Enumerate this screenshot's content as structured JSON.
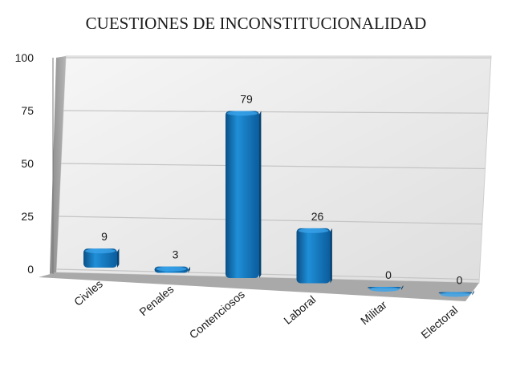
{
  "chart_data": {
    "type": "bar",
    "title": "CUESTIONES DE INCONSTITUCIONALIDAD",
    "categories": [
      "Civiles",
      "Penales",
      "Contenciosos",
      "Laboral",
      "Militar",
      "Electoral"
    ],
    "values": [
      9,
      3,
      79,
      26,
      0,
      0
    ],
    "yticks": [
      "0",
      "25",
      "50",
      "75",
      "100"
    ],
    "ylim": [
      0,
      100
    ],
    "grid": true,
    "three_d": true,
    "bar_color": "#0e6db3",
    "wall_color": "#ececec",
    "floor_color": "#a9a9a9"
  }
}
